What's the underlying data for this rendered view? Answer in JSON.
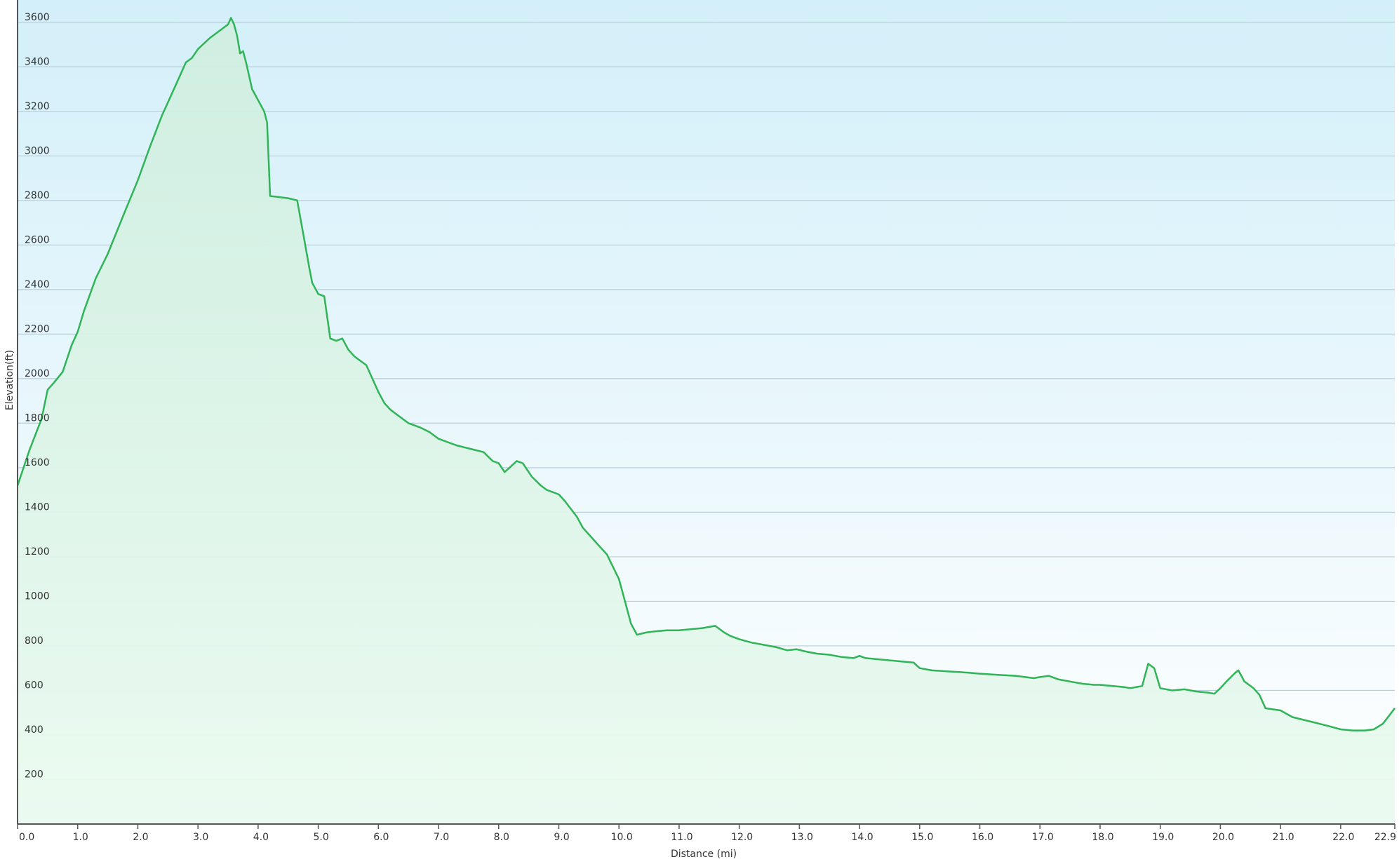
{
  "chart_data": {
    "type": "area",
    "title": "",
    "xlabel": "Distance  (mi)",
    "ylabel": "Elevation(ft)",
    "xlim": [
      0,
      22.9
    ],
    "ylim": [
      0,
      3700
    ],
    "grid": true,
    "x_ticks": [
      0.0,
      1.0,
      2.0,
      3.0,
      4.0,
      5.0,
      6.0,
      7.0,
      8.0,
      9.0,
      10.0,
      11.0,
      12.0,
      13.0,
      14.0,
      15.0,
      16.0,
      17.0,
      18.0,
      19.0,
      20.0,
      21.0,
      22.0,
      22.9
    ],
    "x_tick_labels": [
      "0.0",
      "1.0",
      "2.0",
      "3.0",
      "4.0",
      "5.0",
      "6.0",
      "7.0",
      "8.0",
      "9.0",
      "10.0",
      "11.0",
      "12.0",
      "13.0",
      "14.0",
      "15.0",
      "16.0",
      "17.0",
      "18.0",
      "19.0",
      "20.0",
      "21.0",
      "22.0",
      "22.9"
    ],
    "y_ticks": [
      200,
      400,
      600,
      800,
      1000,
      1200,
      1400,
      1600,
      1800,
      2000,
      2200,
      2400,
      2600,
      2800,
      3000,
      3200,
      3400,
      3600
    ],
    "y_tick_labels": [
      "200",
      "400",
      "600",
      "800",
      "1000",
      "1200",
      "1400",
      "1600",
      "1800",
      "2000",
      "2200",
      "2400",
      "2600",
      "2800",
      "3000",
      "3200",
      "3400",
      "3600"
    ],
    "series": [
      {
        "color": "#2fb457",
        "x": [
          0.0,
          0.2,
          0.4,
          0.5,
          0.6,
          0.75,
          0.9,
          1.0,
          1.1,
          1.3,
          1.5,
          1.8,
          2.0,
          2.2,
          2.4,
          2.6,
          2.8,
          2.9,
          3.0,
          3.2,
          3.3,
          3.4,
          3.5,
          3.55,
          3.6,
          3.65,
          3.7,
          3.75,
          3.8,
          3.9,
          4.0,
          4.1,
          4.15,
          4.2,
          4.2,
          4.5,
          4.65,
          4.75,
          4.85,
          4.9,
          5.0,
          5.1,
          5.2,
          5.3,
          5.4,
          5.5,
          5.6,
          5.8,
          6.0,
          6.1,
          6.2,
          6.35,
          6.5,
          6.6,
          6.7,
          6.85,
          7.0,
          7.1,
          7.2,
          7.3,
          7.45,
          7.6,
          7.75,
          7.9,
          8.0,
          8.1,
          8.3,
          8.4,
          8.55,
          8.7,
          8.8,
          9.0,
          9.1,
          9.3,
          9.4,
          9.6,
          9.8,
          10.0,
          10.1,
          10.2,
          10.3,
          10.45,
          10.6,
          10.8,
          11.0,
          11.2,
          11.4,
          11.6,
          11.75,
          11.85,
          12.0,
          12.2,
          12.4,
          12.6,
          12.8,
          12.95,
          13.1,
          13.3,
          13.5,
          13.7,
          13.9,
          14.0,
          14.1,
          14.3,
          14.5,
          14.7,
          14.9,
          15.0,
          15.2,
          15.5,
          15.8,
          16.0,
          16.3,
          16.6,
          16.9,
          17.0,
          17.15,
          17.3,
          17.5,
          17.7,
          17.9,
          18.0,
          18.2,
          18.4,
          18.5,
          18.7,
          18.8,
          18.9,
          19.0,
          19.2,
          19.4,
          19.6,
          19.8,
          19.9,
          20.0,
          20.1,
          20.25,
          20.3,
          20.4,
          20.55,
          20.65,
          20.75,
          21.0,
          21.2,
          21.5,
          21.8,
          22.0,
          22.2,
          22.4,
          22.55,
          22.7,
          22.9
        ],
        "y": [
          1520,
          1680,
          1820,
          1950,
          1980,
          2030,
          2150,
          2210,
          2300,
          2450,
          2560,
          2760,
          2890,
          3040,
          3180,
          3300,
          3420,
          3440,
          3480,
          3530,
          3550,
          3570,
          3590,
          3620,
          3590,
          3540,
          3460,
          3470,
          3420,
          3300,
          3250,
          3200,
          3150,
          2820,
          2820,
          2810,
          2800,
          2650,
          2500,
          2430,
          2380,
          2370,
          2180,
          2170,
          2180,
          2130,
          2100,
          2060,
          1940,
          1890,
          1860,
          1830,
          1800,
          1790,
          1780,
          1760,
          1730,
          1720,
          1710,
          1700,
          1690,
          1680,
          1670,
          1630,
          1620,
          1580,
          1630,
          1620,
          1560,
          1520,
          1500,
          1480,
          1450,
          1380,
          1330,
          1270,
          1210,
          1100,
          1000,
          900,
          850,
          860,
          865,
          870,
          870,
          875,
          880,
          890,
          860,
          845,
          830,
          815,
          805,
          795,
          780,
          785,
          775,
          765,
          760,
          750,
          745,
          755,
          745,
          740,
          735,
          730,
          725,
          700,
          690,
          685,
          680,
          675,
          670,
          665,
          655,
          660,
          665,
          650,
          640,
          630,
          625,
          625,
          620,
          615,
          610,
          620,
          720,
          700,
          610,
          600,
          605,
          595,
          590,
          585,
          610,
          640,
          680,
          690,
          640,
          610,
          580,
          520,
          510,
          480,
          460,
          440,
          425,
          420,
          420,
          425,
          450,
          520
        ]
      }
    ]
  }
}
